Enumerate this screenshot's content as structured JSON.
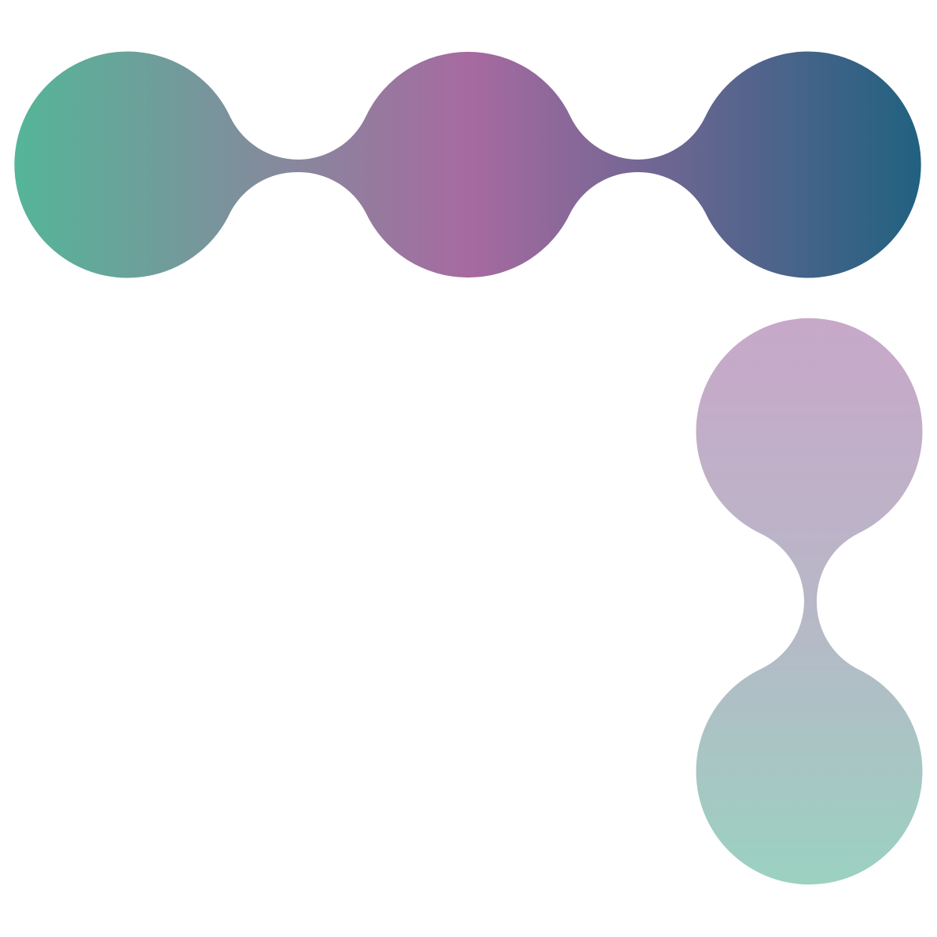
{
  "graphic": {
    "description_visible_text": "",
    "colors": {
      "background": "#ffffff",
      "teal": "#55b598",
      "mauve": "#a76aa0",
      "navy": "#216180",
      "light_mauve": "#c8a8c9",
      "light_grey": "#b8b7c7",
      "light_teal": "#9bd1c1"
    },
    "horizontal_chain": {
      "node_count": 3
    },
    "vertical_chain": {
      "node_count": 2
    }
  }
}
